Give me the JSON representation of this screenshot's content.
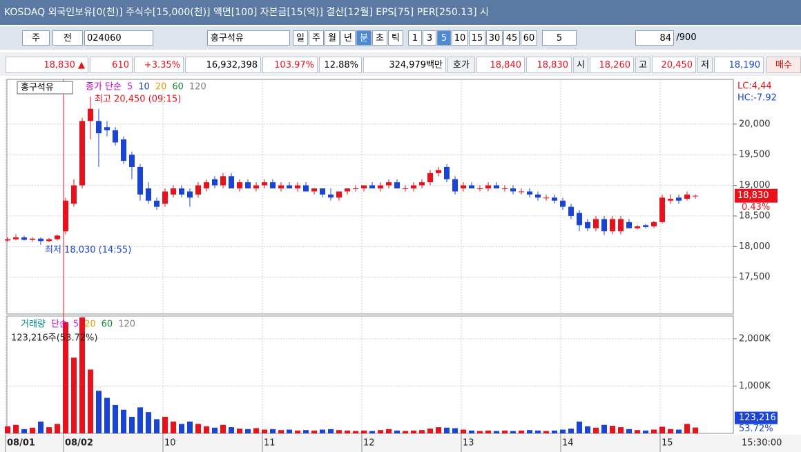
{
  "title_bar": {
    "text": "KOSDAQ 외국인보유[0(천)] 주식수[15,000(천)] 액면[100] 자본금[15(억)] 결산[12월] EPS[75] PER[250.13] 시"
  },
  "toolbar": {
    "market": "주",
    "type": "전",
    "code": "024060",
    "name": "홍구석유",
    "periods": [
      "일",
      "주",
      "월",
      "년",
      "분",
      "초",
      "틱"
    ],
    "intervals": [
      "1",
      "3",
      "5",
      "10",
      "15",
      "30",
      "45",
      "60"
    ],
    "unit": "5",
    "count": "84",
    "total": "/900"
  },
  "quote": {
    "price": "18,830 ▲",
    "change": "610",
    "change_pct": "+3.35%",
    "volume": "16,932,398",
    "ratio": "103.97%",
    "turnover": "12.88%",
    "amount": "324,979백만",
    "bid_label": "호가",
    "ask": "18,840",
    "bid": "18,830",
    "open_label": "시",
    "open": "18,260",
    "high_label": "고",
    "high": "20,450",
    "low_label": "저",
    "low": "18,190",
    "button": "매수"
  },
  "chart": {
    "name": "홍구석유",
    "price_legend": [
      {
        "text": "종가 단순",
        "color": "#c000c0"
      },
      {
        "text": "5",
        "color": "#e020e0"
      },
      {
        "text": "10",
        "color": "#2040c0"
      },
      {
        "text": "20",
        "color": "#e0a000"
      },
      {
        "text": "60",
        "color": "#109030"
      },
      {
        "text": "120",
        "color": "#808080"
      }
    ],
    "volume_legend": [
      {
        "text": "거래량",
        "color": "#008888"
      },
      {
        "text": "단순",
        "color": "#c000c0"
      },
      {
        "text": "5",
        "color": "#e020e0"
      },
      {
        "text": "20",
        "color": "#e0a000"
      },
      {
        "text": "60",
        "color": "#109030"
      },
      {
        "text": "120",
        "color": "#808080"
      }
    ],
    "categories": [
      "08/01",
      null,
      null,
      null,
      null,
      null,
      null,
      "08/02",
      null,
      null,
      null,
      null,
      null,
      null,
      null,
      null,
      null,
      null,
      null,
      "10",
      null,
      null,
      null,
      null,
      null,
      null,
      null,
      null,
      null,
      null,
      null,
      "11",
      null,
      null,
      null,
      null,
      null,
      null,
      null,
      null,
      null,
      null,
      null,
      "12",
      null,
      null,
      null,
      null,
      null,
      null,
      null,
      null,
      null,
      null,
      null,
      "13",
      null,
      null,
      null,
      null,
      null,
      null,
      null,
      null,
      null,
      null,
      null,
      "14",
      null,
      null,
      null,
      null,
      null,
      null,
      null,
      null,
      null,
      null,
      null,
      "15",
      null,
      null,
      null,
      null
    ],
    "open": [
      18100,
      18120,
      18150,
      18110,
      18130,
      18090,
      18120,
      18250,
      18700,
      19000,
      20050,
      20050,
      19950,
      19900,
      19750,
      19500,
      19300,
      18950,
      18750,
      18700,
      18850,
      18950,
      18900,
      18850,
      18950,
      19100,
      19000,
      19150,
      18950,
      19050,
      18950,
      19000,
      19050,
      18950,
      19000,
      18950,
      19000,
      18900,
      18950,
      18850,
      18800,
      18900,
      18950,
      18950,
      19000,
      18950,
      19000,
      19050,
      18950,
      18950,
      19000,
      19050,
      19200,
      19300,
      19100,
      18950,
      19000,
      18950,
      18950,
      19000,
      18950,
      18950,
      18900,
      18900,
      18850,
      18800,
      18800,
      18750,
      18650,
      18550,
      18400,
      18300,
      18450,
      18250,
      18250,
      18400,
      18300,
      18350,
      18330,
      18400,
      18750,
      18800,
      18780,
      18820
    ],
    "high": [
      18150,
      18200,
      18180,
      18150,
      18150,
      18140,
      18200,
      18800,
      19100,
      20100,
      20450,
      20250,
      20050,
      19950,
      19800,
      19550,
      19350,
      19050,
      18800,
      18950,
      19000,
      19000,
      18950,
      19050,
      19100,
      19150,
      19200,
      19200,
      19100,
      19100,
      19050,
      19100,
      19100,
      19050,
      19050,
      19050,
      19050,
      18950,
      18950,
      18950,
      18900,
      18950,
      19000,
      19000,
      19050,
      19050,
      19100,
      19100,
      19000,
      19050,
      19100,
      19250,
      19300,
      19350,
      19150,
      19050,
      19050,
      19000,
      19050,
      19050,
      19000,
      19000,
      18950,
      18950,
      18900,
      18850,
      18850,
      18800,
      18700,
      18600,
      18450,
      18500,
      18500,
      18500,
      18500,
      18450,
      18350,
      18370,
      18420,
      18850,
      18850,
      18850,
      18900,
      18850
    ],
    "low": [
      18080,
      18100,
      18100,
      18080,
      18030,
      18070,
      18100,
      18200,
      18650,
      18950,
      19750,
      19300,
      19800,
      19650,
      19350,
      19100,
      18750,
      18700,
      18600,
      18650,
      18800,
      18800,
      18650,
      18800,
      18900,
      18950,
      18950,
      18950,
      18900,
      18950,
      18900,
      18950,
      18950,
      18900,
      18950,
      18900,
      18900,
      18850,
      18800,
      18750,
      18750,
      18850,
      18900,
      18900,
      18950,
      18900,
      18950,
      18950,
      18900,
      18900,
      18950,
      19000,
      19150,
      19050,
      18850,
      18900,
      18950,
      18900,
      18900,
      18950,
      18900,
      18850,
      18850,
      18800,
      18750,
      18750,
      18700,
      18600,
      18450,
      18250,
      18250,
      18250,
      18190,
      18200,
      18200,
      18300,
      18280,
      18300,
      18300,
      18380,
      18700,
      18700,
      18750,
      18780
    ],
    "close": [
      18120,
      18150,
      18110,
      18130,
      18090,
      18120,
      18180,
      18750,
      19000,
      20050,
      20250,
      19850,
      19900,
      19700,
      19400,
      19300,
      18850,
      18750,
      18650,
      18900,
      18950,
      18850,
      18800,
      19000,
      19050,
      19000,
      19150,
      18950,
      19050,
      18950,
      19000,
      19050,
      18950,
      19000,
      18950,
      19000,
      18900,
      18950,
      18850,
      18800,
      18900,
      18950,
      18950,
      19000,
      18950,
      19000,
      19050,
      18950,
      18950,
      19000,
      19050,
      19200,
      19250,
      19100,
      18900,
      19000,
      18950,
      18950,
      19000,
      18950,
      18950,
      18900,
      18900,
      18850,
      18800,
      18800,
      18750,
      18650,
      18500,
      18350,
      18300,
      18450,
      18250,
      18450,
      18450,
      18300,
      18330,
      18320,
      18400,
      18800,
      18780,
      18750,
      18850,
      18830
    ],
    "volume": [
      150,
      180,
      90,
      120,
      250,
      130,
      200,
      2350,
      1600,
      2450,
      1350,
      900,
      750,
      600,
      500,
      350,
      550,
      450,
      300,
      350,
      250,
      200,
      250,
      200,
      150,
      120,
      180,
      130,
      100,
      90,
      110,
      80,
      90,
      70,
      80,
      60,
      70,
      60,
      80,
      90,
      70,
      60,
      50,
      60,
      50,
      70,
      90,
      60,
      50,
      60,
      70,
      100,
      130,
      120,
      110,
      80,
      60,
      50,
      60,
      50,
      60,
      50,
      60,
      70,
      60,
      50,
      60,
      80,
      100,
      250,
      150,
      120,
      180,
      160,
      130,
      90,
      70,
      60,
      80,
      140,
      90,
      80,
      200,
      123.216
    ],
    "up_color": "#e8121c",
    "down_color": "#1a44d8",
    "price_ylim": [
      16900,
      20730
    ],
    "price_yticks": [
      {
        "value": 17500,
        "label": "17,500"
      },
      {
        "value": 18000,
        "label": "18,000"
      },
      {
        "value": 18500,
        "label": "18,500"
      },
      {
        "value": 19000,
        "label": "19,000"
      },
      {
        "value": 19500,
        "label": "19,500"
      },
      {
        "value": 20000,
        "label": "20,000"
      }
    ],
    "volume_ylim": [
      0,
      2480
    ],
    "volume_yticks": [
      {
        "value": 1000,
        "label": "1,000K"
      },
      {
        "value": 2000,
        "label": "2,000K"
      }
    ],
    "grid": true,
    "high_note": "최고 20,450 (09:15)",
    "low_note": "최저 18,030 (14:55)",
    "lc": "LC:4,44",
    "hc": "HC:-7.92",
    "last_price": "18,830",
    "last_pct": "0.43%",
    "volume_note": "123,216주(53.72%)",
    "last_volume": "123,216",
    "last_volume_pct": "53.72%",
    "time_label": "15:30:00"
  }
}
